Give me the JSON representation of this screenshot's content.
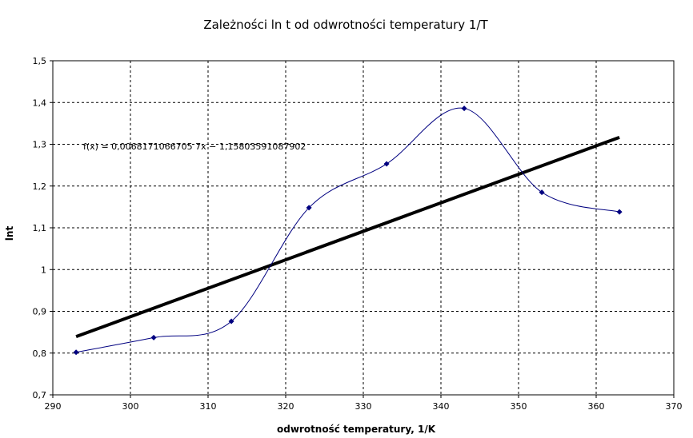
{
  "chart_data": {
    "type": "scatter",
    "title": "Zależności ln t od odwrotności temperatury 1/T",
    "xlabel": "odwrotność temperatury, 1/K",
    "ylabel": "lnt",
    "xlim": [
      290,
      370
    ],
    "ylim": [
      0.7,
      1.5
    ],
    "x_ticks": [
      290,
      300,
      310,
      320,
      330,
      340,
      350,
      360,
      370
    ],
    "y_ticks": [
      0.7,
      0.8,
      0.9,
      1.0,
      1.1,
      1.2,
      1.3,
      1.4,
      1.5
    ],
    "x_tick_labels": [
      "290",
      "300",
      "310",
      "320",
      "330",
      "340",
      "350",
      "360",
      "370"
    ],
    "y_tick_labels": [
      "0,7",
      "0,8",
      "0,9",
      "1",
      "1,1",
      "1,2",
      "1,3",
      "1,4",
      "1,5"
    ],
    "grid": true,
    "legend": "none",
    "series": [
      {
        "x": [
          293,
          303,
          313,
          323,
          333,
          343,
          353,
          363
        ],
        "y": [
          0.802,
          0.837,
          0.876,
          1.148,
          1.253,
          1.386,
          1.185,
          1.138
        ],
        "marker": "diamond",
        "line": "smooth",
        "color": "#000080"
      }
    ],
    "trendline": {
      "slope": 0.0068171066705,
      "intercept": -1.15803591087902,
      "x_range": [
        293,
        363
      ],
      "color": "#000000",
      "equation_label": "f(x) = 0,0068171066705 7x − 1,15803591087902"
    }
  }
}
